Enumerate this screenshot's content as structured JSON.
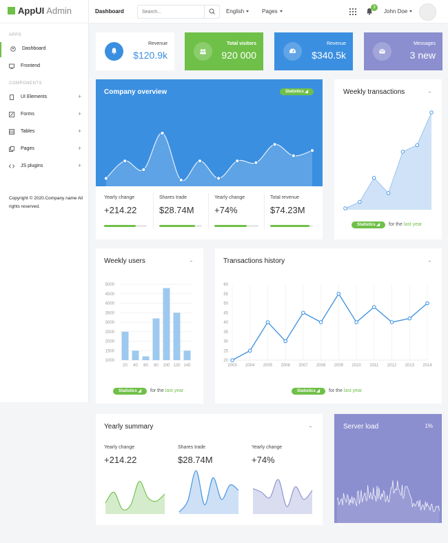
{
  "brand": {
    "name_bold": "AppUI",
    "name_light": "Admin"
  },
  "sidebar": {
    "sections": [
      {
        "label": "APPS"
      },
      {
        "label": "COMPONENTS"
      }
    ],
    "items": [
      {
        "label": "Dashboard",
        "icon": "user-circle-icon"
      },
      {
        "label": "Frontend",
        "icon": "monitor-icon"
      },
      {
        "label": "UI Elements",
        "icon": "mobile-icon",
        "expand": "+"
      },
      {
        "label": "Forms",
        "icon": "pencil-icon",
        "expand": "+"
      },
      {
        "label": "Tables",
        "icon": "table-icon",
        "expand": "+"
      },
      {
        "label": "Pages",
        "icon": "copy-icon",
        "expand": "+"
      },
      {
        "label": "JS plugins",
        "icon": "code-icon",
        "expand": "+"
      }
    ],
    "copyright": "Copyright © 2020.Company name All rights reserved."
  },
  "topbar": {
    "breadcrumb": "Dashboard",
    "search_placeholder": "Search...",
    "language": "English",
    "pages": "Pages",
    "notifications": "3",
    "user": "John Doe"
  },
  "tiles": [
    {
      "label": "Revenue",
      "value": "$120.9k",
      "icon": "bell-icon",
      "bg": "#ffffff",
      "accent": "#3b8fe0"
    },
    {
      "label": "Total visitors",
      "value": "920 000",
      "icon": "users-icon",
      "bg": "#6fc048",
      "accent": "#ffffff"
    },
    {
      "label": "Revenue",
      "value": "$340.5k",
      "icon": "gauge-icon",
      "bg": "#3b8fe0",
      "accent": "#ffffff"
    },
    {
      "label": "Messages",
      "value": "3 new",
      "icon": "envelope-icon",
      "bg": "#8b8fcf",
      "accent": "#ffffff"
    }
  ],
  "overview": {
    "title": "Company overview",
    "badge": "Statistics",
    "kpis": [
      {
        "label": "Yearly change",
        "value": "+214.22",
        "progress": 0.74
      },
      {
        "label": "Shares trade",
        "value": "$28.74M",
        "progress": 0.84
      },
      {
        "label": "Yearly change",
        "value": "+74%",
        "progress": 0.74
      },
      {
        "label": "Total revenue",
        "value": "$74.23M",
        "progress": 0.92
      }
    ]
  },
  "weekly_transactions": {
    "title": "Weekly transactions",
    "menu": "...",
    "badge": "Statistics",
    "foot_text": "for the",
    "foot_link": "last year"
  },
  "weekly_users": {
    "title": "Weekly users",
    "menu": "...",
    "badge": "Statistics",
    "foot_text": "for the",
    "foot_link": "last year"
  },
  "transactions_history": {
    "title": "Transactions history",
    "menu": "...",
    "badge": "Statistics",
    "foot_text": "for the",
    "foot_link": "last year"
  },
  "yearly_summary": {
    "title": "Yearly summary",
    "menu": "...",
    "items": [
      {
        "label": "Yearly change",
        "value": "+214.22",
        "color": "#6fc048"
      },
      {
        "label": "Shares trade",
        "value": "$28.74M",
        "color": "#3b8fe0"
      },
      {
        "label": "Yearly change",
        "value": "+74%",
        "color": "#8b8fcf"
      }
    ]
  },
  "server_load": {
    "title": "Server load",
    "value": "1%",
    "bg": "#8b8fcf"
  },
  "chart_data": [
    {
      "id": "company-overview",
      "type": "area",
      "values": [
        0,
        2,
        1,
        5.2,
        -0.2,
        2,
        0,
        2,
        1.8,
        3.9,
        2.6,
        3.2
      ]
    },
    {
      "id": "weekly-transactions",
      "type": "area",
      "values": [
        0,
        0.6,
        2.8,
        1.4,
        5.2,
        5.8,
        8.8
      ]
    },
    {
      "id": "weekly-users",
      "type": "bar",
      "categories": [
        "20",
        "40",
        "60",
        "80",
        "100",
        "120",
        "140"
      ],
      "values": [
        2500,
        1500,
        1200,
        3200,
        4800,
        3500,
        1500
      ],
      "ylim": [
        1000,
        5000
      ],
      "yticks": [
        "1000",
        "1500",
        "2000",
        "2500",
        "3000",
        "3500",
        "4000",
        "4500",
        "5000"
      ],
      "color": "#9ec9ef"
    },
    {
      "id": "transactions-history",
      "type": "line",
      "x": [
        "2003",
        "2004",
        "2005",
        "2006",
        "2007",
        "2008",
        "2009",
        "2010",
        "2011",
        "2012",
        "2013",
        "2014"
      ],
      "values": [
        20,
        25,
        40,
        30,
        45,
        40,
        55,
        40,
        48,
        40,
        42,
        50
      ],
      "ylim": [
        20,
        60
      ],
      "yticks": [
        "20",
        "25",
        "30",
        "35",
        "40",
        "45",
        "50",
        "55",
        "60"
      ],
      "color": "#3b8fe0"
    },
    {
      "id": "summary-1",
      "type": "area",
      "values": [
        1,
        2.2,
        0.3,
        0.8,
        3.4,
        1.6,
        1.2,
        2
      ]
    },
    {
      "id": "summary-2",
      "type": "area",
      "values": [
        0,
        1.2,
        4.6,
        0.8,
        3.8,
        1.4,
        3,
        2.4
      ]
    },
    {
      "id": "summary-3",
      "type": "area",
      "values": [
        2.6,
        2.2,
        1.6,
        3.6,
        0.6,
        2.8,
        1.4,
        2.4
      ]
    }
  ]
}
